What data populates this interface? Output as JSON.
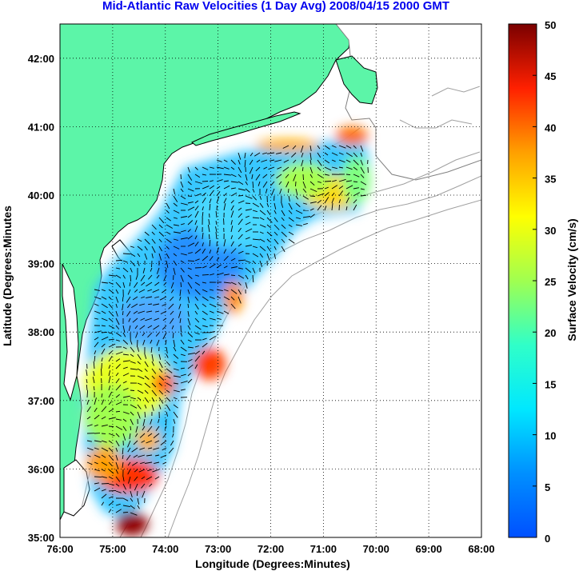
{
  "title": "Mid-Atlantic Raw Velocities (1 Day Avg) 2008/04/15 2000 GMT",
  "chart_data": {
    "type": "heatmap",
    "title": "Mid-Atlantic Raw Velocities (1 Day Avg) 2008/04/15 2000 GMT",
    "xlabel": "Longitude (Degrees:Minutes)",
    "ylabel": "Latitude (Degrees:Minutes",
    "x_ticks": [
      "76:00",
      "75:00",
      "74:00",
      "73:00",
      "72:00",
      "71:00",
      "70:00",
      "69:00",
      "68:00"
    ],
    "y_ticks": [
      "35:00",
      "36:00",
      "37:00",
      "38:00",
      "39:00",
      "40:00",
      "41:00",
      "42:00"
    ],
    "xlim": [
      -76,
      -68
    ],
    "ylim": [
      35,
      42.5
    ],
    "grid": true,
    "colorbar": {
      "label": "Surface Velocity (cm/s)",
      "ticks": [
        "0",
        "5",
        "10",
        "15",
        "20",
        "25",
        "30",
        "35",
        "40",
        "45",
        "50"
      ],
      "range": [
        0,
        50
      ],
      "colormap": "jet"
    },
    "colors": {
      "land": "#5cf5a8",
      "coastline": "#000000",
      "bathymetry": "#a0a0a0",
      "title": "#0000ee",
      "vectors": "#000000"
    }
  }
}
